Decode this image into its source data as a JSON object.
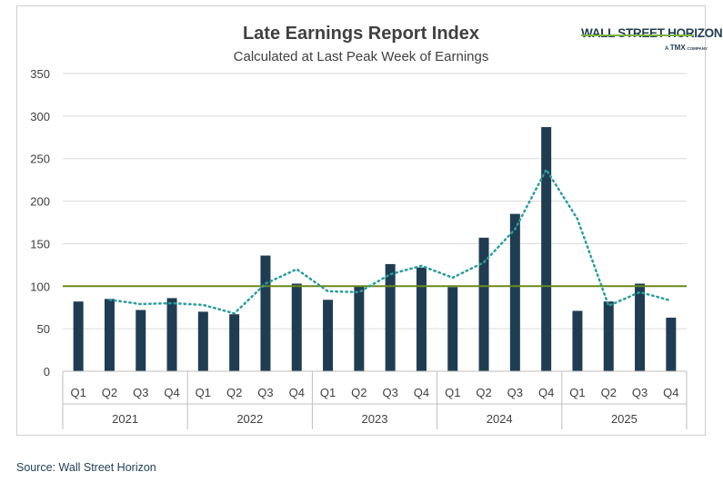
{
  "source": "Source: Wall Street Horizon",
  "logo": {
    "main": "WALL STREET HORIZON",
    "sub_a": "A",
    "sub_tmx": "TMX",
    "sub_company": "COMPANY"
  },
  "colors": {
    "bar": "#1f3d52",
    "dotted_line": "#2a9d9e",
    "baseline": "#6a8a1f",
    "grid": "#d9d9d9",
    "text": "#404040"
  },
  "chart_data": {
    "type": "bar",
    "title": "Late Earnings Report Index",
    "subtitle": "Calculated at Last Peak Week of Earnings",
    "ylim": [
      0,
      350
    ],
    "yticks": [
      "0",
      "50",
      "100",
      "150",
      "200",
      "250",
      "300",
      "350"
    ],
    "grid": true,
    "categories": [
      "Q1",
      "Q2",
      "Q3",
      "Q4",
      "Q1",
      "Q2",
      "Q3",
      "Q4",
      "Q1",
      "Q2",
      "Q3",
      "Q4",
      "Q1",
      "Q2",
      "Q3",
      "Q4",
      "Q1",
      "Q2",
      "Q3",
      "Q4"
    ],
    "year_groups": [
      {
        "label": "2021",
        "count": 4
      },
      {
        "label": "2022",
        "count": 4
      },
      {
        "label": "2023",
        "count": 4
      },
      {
        "label": "2024",
        "count": 4
      },
      {
        "label": "2025",
        "count": 4
      }
    ],
    "values": [
      82,
      85,
      72,
      86,
      70,
      67,
      136,
      103,
      84,
      100,
      126,
      122,
      99,
      157,
      185,
      287,
      71,
      82,
      103,
      63
    ],
    "moving_average": [
      null,
      84,
      79,
      80,
      78,
      68,
      103,
      120,
      94,
      93,
      114,
      124,
      110,
      128,
      167,
      237,
      179,
      77,
      93,
      83
    ],
    "reference_line": 100
  }
}
